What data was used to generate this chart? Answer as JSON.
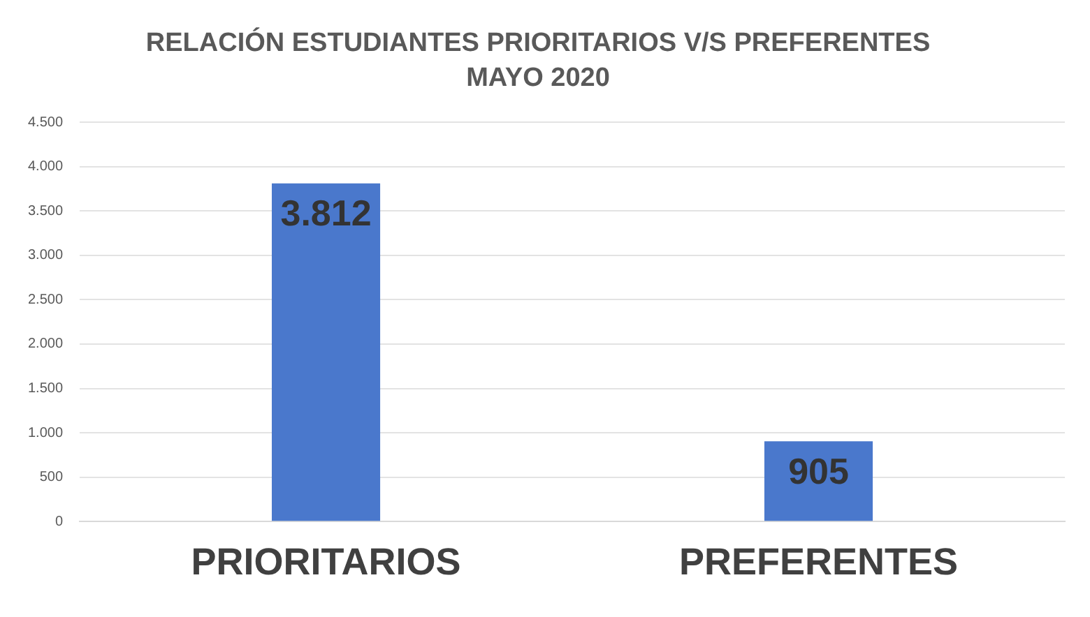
{
  "chart_data": {
    "type": "bar",
    "title": "RELACIÓN ESTUDIANTES PRIORITARIOS V/S PREFERENTES",
    "subtitle": "MAYO 2020",
    "categories": [
      "PRIORITARIOS",
      "PREFERENTES"
    ],
    "values": [
      3812,
      905
    ],
    "color": "#4a78cc",
    "value_labels": [
      "3.812",
      "905"
    ],
    "ylim": [
      0,
      4500
    ],
    "yticks": [
      {
        "value": 0,
        "label": "0"
      },
      {
        "value": 500,
        "label": "500"
      },
      {
        "value": 1000,
        "label": "1.000"
      },
      {
        "value": 1500,
        "label": "1.500"
      },
      {
        "value": 2000,
        "label": "2.000"
      },
      {
        "value": 2500,
        "label": "2.500"
      },
      {
        "value": 3000,
        "label": "3.000"
      },
      {
        "value": 3500,
        "label": "3.500"
      },
      {
        "value": 4000,
        "label": "4.000"
      },
      {
        "value": 4500,
        "label": "4.500"
      }
    ],
    "grid": "y",
    "legend": false
  }
}
